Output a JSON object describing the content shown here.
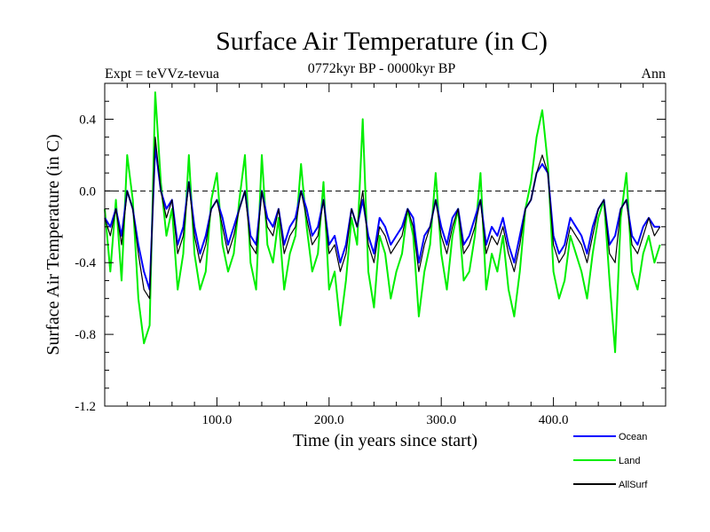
{
  "header": {
    "title": "Surface Air Temperature (in C)",
    "experiment": "Expt = teVVz-tevua",
    "period": "0772kyr BP - 0000kyr BP",
    "season": "Ann"
  },
  "chart_data": {
    "type": "line",
    "xlabel": "Time (in years since start)",
    "ylabel": "Surface Air Temperature (in C)",
    "xlim": [
      0,
      500
    ],
    "ylim": [
      -1.2,
      0.6
    ],
    "x_ticks": [
      100,
      200,
      300,
      400
    ],
    "x_tick_labels": [
      "100.0",
      "200.0",
      "300.0",
      "400.0"
    ],
    "y_ticks": [
      -1.2,
      -0.8,
      -0.4,
      0.0,
      0.4
    ],
    "y_tick_labels": [
      "-1.2",
      "-0.8",
      "-0.4",
      "0.0",
      "0.4"
    ],
    "reference_line": 0.0,
    "grid": false,
    "legend_position": "bottom-right, outside plot",
    "series": [
      {
        "name": "Ocean",
        "color": "#0000ff",
        "x_start": 0,
        "x_step": 5,
        "values": [
          -0.15,
          -0.2,
          -0.1,
          -0.25,
          0.0,
          -0.1,
          -0.3,
          -0.45,
          -0.55,
          0.25,
          0.0,
          -0.1,
          -0.05,
          -0.3,
          -0.2,
          0.05,
          -0.2,
          -0.35,
          -0.25,
          -0.1,
          -0.05,
          -0.15,
          -0.3,
          -0.2,
          -0.1,
          0.0,
          -0.25,
          -0.3,
          0.0,
          -0.15,
          -0.2,
          -0.1,
          -0.3,
          -0.2,
          -0.15,
          0.0,
          -0.1,
          -0.25,
          -0.2,
          -0.05,
          -0.3,
          -0.25,
          -0.4,
          -0.3,
          -0.1,
          -0.2,
          -0.05,
          -0.25,
          -0.35,
          -0.15,
          -0.2,
          -0.3,
          -0.25,
          -0.2,
          -0.1,
          -0.15,
          -0.4,
          -0.25,
          -0.2,
          -0.05,
          -0.2,
          -0.3,
          -0.15,
          -0.1,
          -0.3,
          -0.25,
          -0.15,
          -0.05,
          -0.3,
          -0.2,
          -0.25,
          -0.15,
          -0.3,
          -0.4,
          -0.25,
          -0.1,
          -0.05,
          0.1,
          0.15,
          0.1,
          -0.25,
          -0.35,
          -0.3,
          -0.15,
          -0.2,
          -0.25,
          -0.35,
          -0.2,
          -0.1,
          -0.05,
          -0.3,
          -0.25,
          -0.1,
          -0.05,
          -0.25,
          -0.3,
          -0.2,
          -0.15,
          -0.2,
          -0.2
        ]
      },
      {
        "name": "Land",
        "color": "#00ee00",
        "x_start": 0,
        "x_step": 5,
        "values": [
          -0.1,
          -0.45,
          -0.05,
          -0.5,
          0.2,
          -0.05,
          -0.6,
          -0.85,
          -0.75,
          0.55,
          0.05,
          -0.25,
          -0.1,
          -0.55,
          -0.35,
          0.2,
          -0.35,
          -0.55,
          -0.45,
          -0.05,
          0.1,
          -0.3,
          -0.45,
          -0.35,
          -0.05,
          0.2,
          -0.4,
          -0.55,
          0.2,
          -0.3,
          -0.4,
          -0.15,
          -0.55,
          -0.35,
          -0.25,
          0.15,
          -0.2,
          -0.45,
          -0.35,
          0.05,
          -0.55,
          -0.45,
          -0.75,
          -0.5,
          -0.15,
          -0.3,
          0.4,
          -0.45,
          -0.65,
          -0.25,
          -0.35,
          -0.6,
          -0.45,
          -0.35,
          -0.1,
          -0.25,
          -0.7,
          -0.45,
          -0.3,
          0.1,
          -0.35,
          -0.55,
          -0.25,
          -0.1,
          -0.5,
          -0.45,
          -0.25,
          0.1,
          -0.55,
          -0.35,
          -0.45,
          -0.25,
          -0.55,
          -0.7,
          -0.45,
          -0.1,
          0.05,
          0.3,
          0.45,
          0.15,
          -0.45,
          -0.6,
          -0.5,
          -0.25,
          -0.35,
          -0.45,
          -0.6,
          -0.35,
          -0.15,
          -0.05,
          -0.5,
          -0.9,
          -0.15,
          0.1,
          -0.45,
          -0.55,
          -0.35,
          -0.25,
          -0.4,
          -0.3
        ]
      },
      {
        "name": "AllSurf",
        "color": "#000000",
        "x_start": 0,
        "x_step": 5,
        "values": [
          -0.15,
          -0.25,
          -0.1,
          -0.3,
          0.0,
          -0.1,
          -0.35,
          -0.55,
          -0.6,
          0.3,
          0.0,
          -0.15,
          -0.05,
          -0.35,
          -0.25,
          0.05,
          -0.25,
          -0.4,
          -0.3,
          -0.1,
          -0.05,
          -0.2,
          -0.35,
          -0.25,
          -0.1,
          0.0,
          -0.3,
          -0.35,
          0.0,
          -0.2,
          -0.25,
          -0.1,
          -0.35,
          -0.25,
          -0.2,
          0.0,
          -0.15,
          -0.3,
          -0.25,
          -0.05,
          -0.35,
          -0.3,
          -0.45,
          -0.35,
          -0.1,
          -0.2,
          0.0,
          -0.3,
          -0.4,
          -0.2,
          -0.25,
          -0.35,
          -0.3,
          -0.25,
          -0.1,
          -0.2,
          -0.45,
          -0.3,
          -0.2,
          -0.05,
          -0.25,
          -0.35,
          -0.2,
          -0.1,
          -0.35,
          -0.3,
          -0.2,
          -0.05,
          -0.35,
          -0.25,
          -0.3,
          -0.2,
          -0.35,
          -0.45,
          -0.3,
          -0.1,
          -0.05,
          0.1,
          0.2,
          0.1,
          -0.3,
          -0.4,
          -0.35,
          -0.2,
          -0.25,
          -0.3,
          -0.4,
          -0.25,
          -0.1,
          -0.05,
          -0.35,
          -0.4,
          -0.1,
          -0.05,
          -0.3,
          -0.35,
          -0.25,
          -0.15,
          -0.25,
          -0.2
        ]
      }
    ]
  }
}
